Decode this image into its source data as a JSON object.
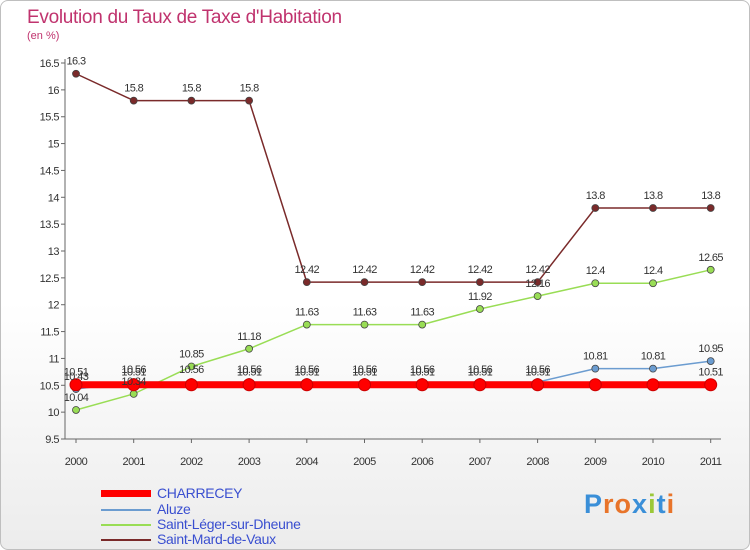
{
  "title": "Evolution du Taux de Taxe d'Habitation",
  "unit_label": "(en %)",
  "logo_text": "Proxiti",
  "chart_data": {
    "type": "line",
    "x": [
      "2000",
      "2001",
      "2002",
      "2003",
      "2004",
      "2005",
      "2006",
      "2007",
      "2008",
      "2009",
      "2010",
      "2011"
    ],
    "ylim": [
      9.5,
      16.5
    ],
    "yticks": [
      "9.5",
      "10",
      "10.5",
      "11",
      "11.5",
      "12",
      "12.5",
      "13",
      "13.5",
      "14",
      "14.5",
      "15",
      "15.5",
      "16",
      "16.5"
    ],
    "grid": false,
    "legend_position": "bottom-left",
    "series": [
      {
        "name": "CHARRECEY",
        "color": "#ff0000",
        "values": [
          10.51,
          10.51,
          10.51,
          10.51,
          10.51,
          10.51,
          10.51,
          10.51,
          10.51,
          10.51,
          10.51,
          10.51
        ],
        "labels": [
          "10.51",
          "10.51",
          "",
          "10.51",
          "10.51",
          "10.51",
          "10.51",
          "10.51",
          "10.51",
          "",
          "",
          "10.51"
        ]
      },
      {
        "name": "Aluze",
        "color": "#6b9cd0",
        "values": [
          10.43,
          10.56,
          10.56,
          10.56,
          10.56,
          10.56,
          10.56,
          10.56,
          10.56,
          10.81,
          10.81,
          10.95
        ],
        "labels": [
          "10.43",
          "10.56",
          "10.56",
          "10.56",
          "10.56",
          "10.56",
          "10.56",
          "10.56",
          "10.56",
          "10.81",
          "10.81",
          "10.95"
        ]
      },
      {
        "name": "Saint-Léger-sur-Dheune",
        "color": "#99dd55",
        "values": [
          10.04,
          10.34,
          10.85,
          11.18,
          11.63,
          11.63,
          11.63,
          11.92,
          12.16,
          12.4,
          12.4,
          12.65
        ],
        "labels": [
          "10.04",
          "10.34",
          "10.85",
          "11.18",
          "11.63",
          "11.63",
          "11.63",
          "11.92",
          "12.16",
          "12.4",
          "12.4",
          "12.65"
        ]
      },
      {
        "name": "Saint-Mard-de-Vaux",
        "color": "#7a2a2a",
        "values": [
          16.3,
          15.8,
          15.8,
          15.8,
          12.42,
          12.42,
          12.42,
          12.42,
          12.42,
          13.8,
          13.8,
          13.8
        ],
        "labels": [
          "16.3",
          "15.8",
          "15.8",
          "15.8",
          "12.42",
          "12.42",
          "12.42",
          "12.42",
          "12.42",
          "13.8",
          "13.8",
          "13.8"
        ]
      }
    ]
  }
}
